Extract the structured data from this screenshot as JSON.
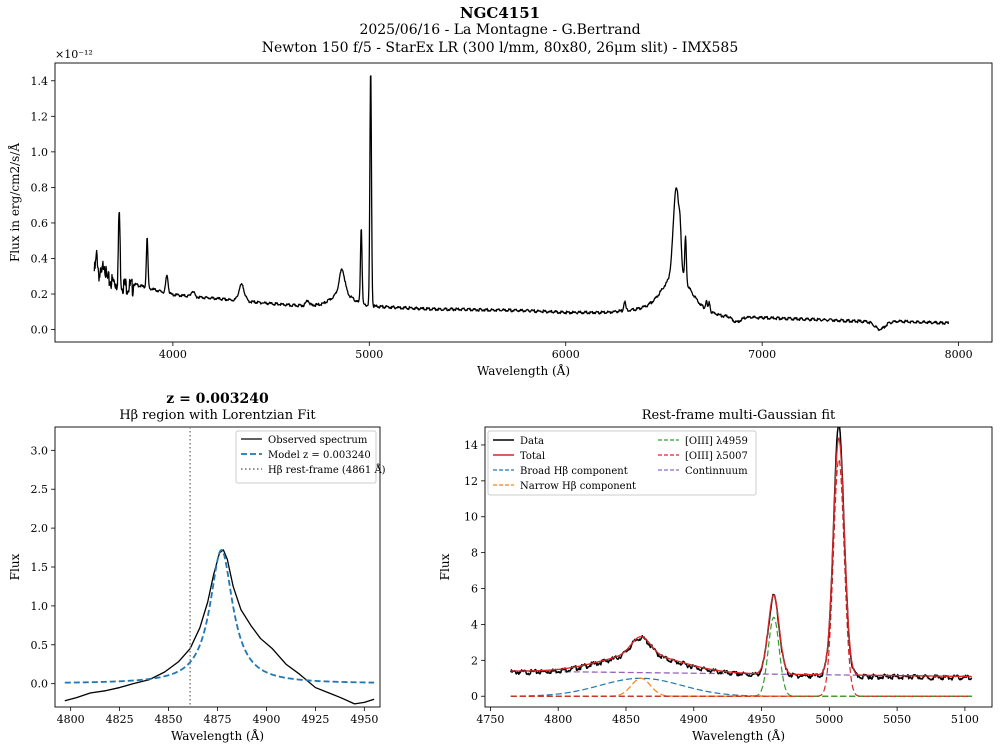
{
  "figure": {
    "title": "NGC4151",
    "subtitle1": "2025/06/16 - La Montagne - G.Bertrand",
    "subtitle2": "Newton 150 f/5 - StarEx LR (300 l/mm, 80x80, 26μm slit) - IMX585"
  },
  "chart_data": [
    {
      "id": "full-spectrum",
      "type": "line",
      "title": "",
      "xlabel": "Wavelength (Å)",
      "ylabel": "Flux in erg/cm2/s/Å",
      "y_scale_label": "×10⁻¹²",
      "xlim": [
        3400,
        8170
      ],
      "ylim": [
        -0.07,
        1.5
      ],
      "xticks": [
        4000,
        5000,
        6000,
        7000,
        8000
      ],
      "yticks": [
        0.0,
        0.2,
        0.4,
        0.6,
        0.8,
        1.0,
        1.2,
        1.4
      ],
      "ytick_labels": [
        "0.0",
        "0.2",
        "0.4",
        "0.6",
        "0.8",
        "1.0",
        "1.2",
        "1.4"
      ],
      "grid": false,
      "series": [
        {
          "color": "#000000",
          "continuum_points": [
            [
              3600,
              0.35
            ],
            [
              3650,
              0.31
            ],
            [
              3700,
              0.29
            ],
            [
              3800,
              0.26
            ],
            [
              3900,
              0.23
            ],
            [
              4000,
              0.2
            ],
            [
              4200,
              0.18
            ],
            [
              4400,
              0.16
            ],
            [
              4600,
              0.14
            ],
            [
              4850,
              0.14
            ],
            [
              4950,
              0.14
            ],
            [
              5100,
              0.13
            ],
            [
              5300,
              0.12
            ],
            [
              5600,
              0.115
            ],
            [
              5800,
              0.11
            ],
            [
              6000,
              0.1
            ],
            [
              6200,
              0.1
            ],
            [
              6400,
              0.12
            ],
            [
              6600,
              0.13
            ],
            [
              6800,
              0.08
            ],
            [
              7000,
              0.07
            ],
            [
              7300,
              0.06
            ],
            [
              7600,
              0.045
            ],
            [
              7700,
              0.05
            ],
            [
              7950,
              0.04
            ]
          ],
          "features": [
            {
              "x": 3613,
              "height": 0.1,
              "width": 5
            },
            {
              "x": 3650,
              "height": 0.1,
              "width": 6
            },
            {
              "x": 3727,
              "height": 0.41,
              "width": 4
            },
            {
              "x": 3869,
              "height": 0.28,
              "width": 4
            },
            {
              "x": 3970,
              "height": 0.1,
              "width": 6
            },
            {
              "x": 4101,
              "height": 0.03,
              "width": 8
            },
            {
              "x": 4350,
              "height": 0.09,
              "width": 14
            },
            {
              "x": 4686,
              "height": 0.03,
              "width": 8
            },
            {
              "x": 4861,
              "height": 0.13,
              "width": 14
            },
            {
              "x": 4861,
              "height": 0.07,
              "width": 50
            },
            {
              "x": 4959,
              "height": 0.43,
              "width": 4
            },
            {
              "x": 5007,
              "height": 1.33,
              "width": 4
            },
            {
              "x": 6300,
              "height": 0.05,
              "width": 5
            },
            {
              "x": 6563,
              "height": 0.5,
              "width": 15
            },
            {
              "x": 6563,
              "height": 0.18,
              "width": 70
            },
            {
              "x": 6583,
              "height": 0.12,
              "width": 5
            },
            {
              "x": 6610,
              "height": 0.25,
              "width": 4
            },
            {
              "x": 6716,
              "height": 0.05,
              "width": 4
            },
            {
              "x": 6731,
              "height": 0.05,
              "width": 4
            }
          ],
          "absorption": [
            {
              "x": 6870,
              "depth": 0.03,
              "width": 20
            },
            {
              "x": 7600,
              "depth": 0.04,
              "width": 25
            }
          ],
          "x_start": 3600,
          "x_end": 7950
        }
      ]
    },
    {
      "id": "hbeta-fit",
      "type": "line",
      "title": "Hβ region with Lorentzian Fit",
      "title_top": "z = 0.003240",
      "xlabel": "Wavelength (Å)",
      "ylabel": "Flux",
      "xlim": [
        4792,
        4958
      ],
      "ylim": [
        -0.3,
        3.3
      ],
      "xticks": [
        4800,
        4825,
        4850,
        4875,
        4900,
        4925,
        4950
      ],
      "yticks": [
        0.0,
        0.5,
        1.0,
        1.5,
        2.0,
        2.5,
        3.0
      ],
      "ytick_labels": [
        "0.0",
        "0.5",
        "1.0",
        "1.5",
        "2.0",
        "2.5",
        "3.0"
      ],
      "grid": false,
      "legend_position": "top-right",
      "series": [
        {
          "name": "Observed spectrum",
          "color": "#000000",
          "style": "solid",
          "points": [
            [
              4797,
              -0.22
            ],
            [
              4803,
              -0.18
            ],
            [
              4810,
              -0.12
            ],
            [
              4818,
              -0.09
            ],
            [
              4825,
              -0.05
            ],
            [
              4832,
              0.0
            ],
            [
              4840,
              0.05
            ],
            [
              4848,
              0.15
            ],
            [
              4855,
              0.28
            ],
            [
              4861,
              0.45
            ],
            [
              4866,
              0.72
            ],
            [
              4870,
              1.05
            ],
            [
              4873,
              1.4
            ],
            [
              4876,
              1.68
            ],
            [
              4878,
              1.72
            ],
            [
              4880,
              1.6
            ],
            [
              4883,
              1.25
            ],
            [
              4887,
              0.95
            ],
            [
              4892,
              0.75
            ],
            [
              4897,
              0.58
            ],
            [
              4903,
              0.45
            ],
            [
              4910,
              0.25
            ],
            [
              4917,
              0.12
            ],
            [
              4925,
              -0.05
            ],
            [
              4932,
              -0.12
            ],
            [
              4938,
              -0.18
            ],
            [
              4945,
              -0.26
            ],
            [
              4950,
              -0.24
            ],
            [
              4955,
              -0.2
            ]
          ]
        },
        {
          "name": "Model z = 0.003240",
          "color": "#1f77b4",
          "style": "dashed",
          "lorentz": {
            "center": 4877,
            "amplitude": 1.72,
            "fwhm": 14,
            "offset": 0.0
          }
        },
        {
          "name": "Hβ rest-frame (4861 Å)",
          "color": "#808080",
          "style": "dotted",
          "vline": 4861
        }
      ]
    },
    {
      "id": "multi-gauss",
      "type": "line",
      "title": "Rest-frame multi-Gaussian fit",
      "xlabel": "Wavelength (Å)",
      "ylabel": "Flux",
      "xlim": [
        4746,
        5120
      ],
      "ylim": [
        -0.6,
        15.0
      ],
      "xticks": [
        4750,
        4800,
        4850,
        4900,
        4950,
        5000,
        5050,
        5100
      ],
      "yticks": [
        0,
        2,
        4,
        6,
        8,
        10,
        12,
        14
      ],
      "ytick_labels": [
        "0",
        "2",
        "4",
        "6",
        "8",
        "10",
        "12",
        "14"
      ],
      "grid": false,
      "legend_position": "top-left",
      "continuum": {
        "x0": 4765,
        "y0": 1.4,
        "x1": 5105,
        "y1": 1.1
      },
      "broad_hbeta": {
        "center": 4861,
        "amplitude": 1.0,
        "sigma": 30
      },
      "narrow_hbeta": {
        "center": 4861,
        "amplitude": 1.0,
        "sigma": 7
      },
      "oiii_4959": {
        "center": 4959,
        "amplitude": 4.4,
        "sigma": 4
      },
      "oiii_5007": {
        "center": 5007,
        "amplitude": 13.2,
        "sigma": 4
      },
      "x_range": [
        4765,
        5105
      ],
      "series": [
        {
          "name": "Data",
          "color": "#000000",
          "style": "solid"
        },
        {
          "name": "Total",
          "color": "#d62728",
          "style": "solid"
        },
        {
          "name": "Broad Hβ component",
          "color": "#1f77b4",
          "style": "dashed"
        },
        {
          "name": "Narrow Hβ component",
          "color": "#ff7f0e",
          "style": "dashed"
        },
        {
          "name": "[OIII] λ4959",
          "color": "#2ca02c",
          "style": "dashed"
        },
        {
          "name": "[OIII] λ5007",
          "color": "#d62728",
          "style": "dashed"
        },
        {
          "name": "Continnuum",
          "color": "#9467bd",
          "style": "dashed"
        }
      ]
    }
  ]
}
